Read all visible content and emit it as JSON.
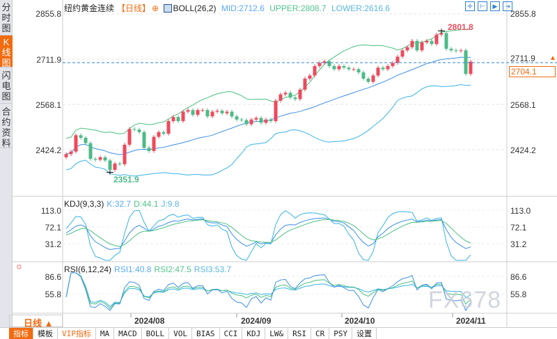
{
  "sidebar": {
    "tabs": [
      "分时图",
      "K线图",
      "闪电图",
      "合约资料"
    ],
    "active": 1
  },
  "header": {
    "title": "纽约黄金连续",
    "period": "【日线】",
    "indicator": "BOLL(26,2)",
    "mid": "MID:2712.6",
    "upper": "UPPER:2808.7",
    "lower": "LOWER:2616.6"
  },
  "price_axis": {
    "labels": [
      "2855.8",
      "2711.9",
      "2568.1",
      "2424.2"
    ],
    "values": [
      2855.8,
      2711.9,
      2568.1,
      2424.2
    ]
  },
  "right_axis": {
    "top": "2855.8",
    "cross": "2711.9",
    "current": "2704.1",
    "mid": "2568.1",
    "bottom": "2424.2"
  },
  "annotations": {
    "high": "2801.8",
    "low": "2351.9"
  },
  "kdj": {
    "title": "KDJ(9,3,3)",
    "k": "K:32.7",
    "d": "D:44.1",
    "j": "J:9.8",
    "axis": [
      "113.0",
      "72.1",
      "31.2"
    ],
    "axis_values": [
      113.0,
      72.1,
      31.2
    ]
  },
  "rsi": {
    "title": "RSI(6,12,24)",
    "r1": "RSI1:40.8",
    "r2": "RSI2:47.5",
    "r3": "RSI3:53.7",
    "axis": [
      "86.6",
      "55.8"
    ],
    "axis_values": [
      86.6,
      55.8
    ]
  },
  "xaxis": {
    "period_button": "日线 ▲",
    "dates": [
      "2024/08",
      "2024/09",
      "2024/10",
      "2024/11"
    ]
  },
  "watermark": "FX678",
  "bottom_tabs": [
    "指标",
    "模板",
    "VIP指标",
    "MA",
    "MACD",
    "BOLL",
    "VOL",
    "BIAS",
    "CCI",
    "KDJ",
    "LW&",
    "RSI",
    "CR",
    "PSY",
    "设置"
  ],
  "colors": {
    "up": "#ee4a5c",
    "down": "#4dbb87",
    "mid": "#3a8ee6",
    "upper": "#48c07f",
    "lower": "#35b3e6",
    "accent": "#f26b0f"
  },
  "chart_data": {
    "type": "candlestick",
    "closes": [
      2410,
      2418,
      2470,
      2462,
      2445,
      2395,
      2392,
      2400,
      2390,
      2360,
      2380,
      2378,
      2440,
      2490,
      2488,
      2480,
      2430,
      2420,
      2465,
      2480,
      2475,
      2515,
      2528,
      2515,
      2545,
      2550,
      2535,
      2550,
      2550,
      2530,
      2545,
      2548,
      2540,
      2545,
      2530,
      2520,
      2518,
      2505,
      2520,
      2525,
      2510,
      2520,
      2515,
      2580,
      2600,
      2605,
      2590,
      2585,
      2615,
      2650,
      2660,
      2690,
      2700,
      2705,
      2690,
      2680,
      2690,
      2685,
      2680,
      2680,
      2670,
      2650,
      2640,
      2660,
      2685,
      2680,
      2690,
      2700,
      2720,
      2740,
      2750,
      2770,
      2740,
      2765,
      2770,
      2760,
      2790,
      2795,
      2745,
      2740,
      2738,
      2740,
      2665,
      2704.1
    ],
    "first_open": 2400,
    "high": 2801.8,
    "low": 2351.9
  }
}
